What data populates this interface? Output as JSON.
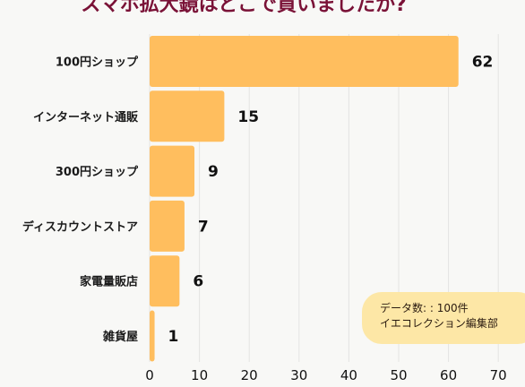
{
  "chart_data": {
    "type": "bar",
    "orientation": "horizontal",
    "title": "スマホ拡大鏡はどこで買いましたか?",
    "categories": [
      "100円ショップ",
      "インターネット通販",
      "300円ショップ",
      "ディスカウントストア",
      "家電量販店",
      "雑貨屋"
    ],
    "values": [
      62,
      15,
      9,
      7,
      6,
      1
    ],
    "xlim": [
      0,
      70
    ],
    "xticks": [
      0,
      10,
      20,
      30,
      40,
      50,
      60,
      70
    ],
    "grid": true,
    "bar_color": "#ffbe5e",
    "title_color": "#7a1237"
  },
  "note": {
    "line1": "データ数: : 100件",
    "line2": "イエコレクション編集部"
  }
}
